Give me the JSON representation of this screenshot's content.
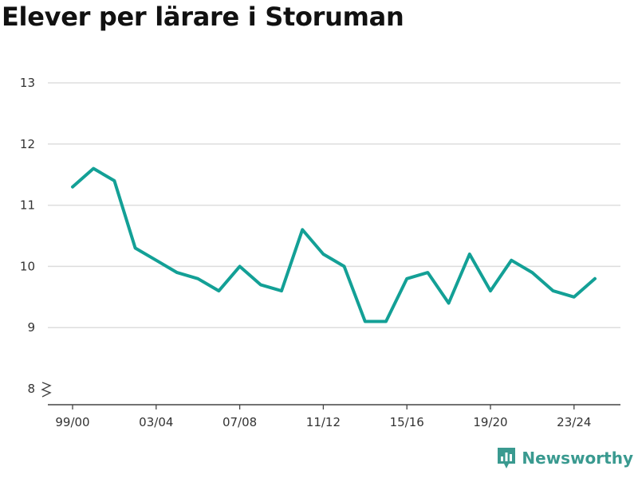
{
  "chart_data": {
    "type": "line",
    "title": "Elever per lärare i Storuman",
    "xlabel": "",
    "ylabel": "",
    "ylim": [
      8,
      13
    ],
    "y_ticks": [
      8,
      9,
      10,
      11,
      12,
      13
    ],
    "x_tick_labels": [
      "99/00",
      "03/04",
      "07/08",
      "11/12",
      "15/16",
      "19/20",
      "23/24"
    ],
    "grid": true,
    "y_axis_break": true,
    "line_color": "#13a096",
    "x": [
      "99/00",
      "00/01",
      "01/02",
      "02/03",
      "03/04",
      "04/05",
      "05/06",
      "06/07",
      "07/08",
      "08/09",
      "09/10",
      "10/11",
      "11/12",
      "12/13",
      "13/14",
      "14/15",
      "15/16",
      "16/17",
      "17/18",
      "18/19",
      "19/20",
      "20/21",
      "21/22",
      "22/23",
      "23/24",
      "24/25"
    ],
    "series": [
      {
        "values": [
          11.3,
          11.6,
          11.4,
          10.3,
          10.1,
          9.9,
          9.8,
          9.6,
          10.0,
          9.7,
          9.6,
          10.6,
          10.2,
          10.0,
          9.1,
          9.1,
          9.8,
          9.9,
          9.4,
          10.2,
          9.6,
          10.1,
          9.9,
          9.6,
          9.5,
          9.8
        ]
      }
    ]
  },
  "brand": {
    "name": "Newsworthy",
    "icon": "newsworthy-logo-icon",
    "color": "#3a9a90"
  }
}
